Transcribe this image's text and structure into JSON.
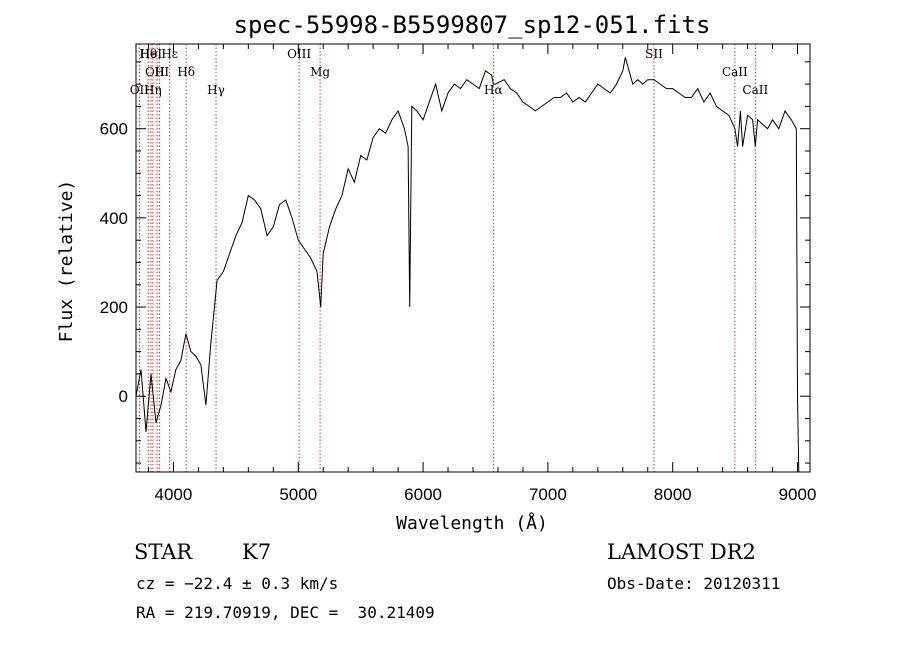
{
  "chart_data": {
    "type": "line",
    "title": "spec-55998-B5599807_sp12-051.fits",
    "xlabel": "Wavelength (Å)",
    "ylabel": "Flux (relative)",
    "xlim": [
      3700,
      9100
    ],
    "ylim": [
      -170,
      790
    ],
    "x_ticks": [
      4000,
      5000,
      6000,
      7000,
      8000,
      9000
    ],
    "y_ticks": [
      0,
      200,
      400,
      600
    ],
    "grid": false,
    "line_color": "#000000",
    "marker_color": "#cc3333",
    "series": [
      {
        "x": [
          3700,
          3740,
          3780,
          3820,
          3860,
          3900,
          3940,
          3980,
          4020,
          4060,
          4100,
          4140,
          4180,
          4220,
          4260,
          4300,
          4350,
          4400,
          4450,
          4500,
          4550,
          4600,
          4650,
          4700,
          4750,
          4800,
          4850,
          4900,
          4950,
          5000,
          5050,
          5100,
          5150,
          5180,
          5200,
          5250,
          5300,
          5350,
          5400,
          5450,
          5500,
          5550,
          5600,
          5650,
          5700,
          5750,
          5800,
          5850,
          5880,
          5893,
          5910,
          5950,
          6000,
          6050,
          6100,
          6150,
          6200,
          6250,
          6300,
          6350,
          6400,
          6450,
          6500,
          6550,
          6563,
          6580,
          6650,
          6700,
          6750,
          6800,
          6850,
          6900,
          6950,
          7000,
          7050,
          7100,
          7150,
          7200,
          7250,
          7300,
          7350,
          7400,
          7450,
          7500,
          7550,
          7600,
          7620,
          7640,
          7680,
          7720,
          7760,
          7800,
          7850,
          7900,
          7950,
          8000,
          8050,
          8100,
          8150,
          8200,
          8250,
          8300,
          8350,
          8400,
          8450,
          8498,
          8520,
          8542,
          8560,
          8600,
          8640,
          8662,
          8680,
          8720,
          8760,
          8800,
          8850,
          8900,
          8950,
          8990,
          9000,
          9010
        ],
        "values": [
          0,
          60,
          -80,
          50,
          -60,
          -20,
          40,
          10,
          60,
          80,
          140,
          100,
          90,
          70,
          -20,
          120,
          260,
          280,
          320,
          360,
          390,
          450,
          440,
          420,
          360,
          380,
          430,
          440,
          400,
          350,
          330,
          310,
          280,
          200,
          320,
          380,
          420,
          450,
          510,
          480,
          540,
          530,
          580,
          600,
          590,
          620,
          640,
          600,
          560,
          200,
          650,
          640,
          620,
          660,
          700,
          640,
          680,
          700,
          690,
          710,
          700,
          690,
          730,
          720,
          700,
          700,
          710,
          690,
          680,
          660,
          650,
          640,
          650,
          660,
          670,
          670,
          680,
          660,
          670,
          660,
          680,
          700,
          690,
          680,
          700,
          730,
          760,
          740,
          700,
          710,
          700,
          710,
          710,
          700,
          690,
          690,
          680,
          670,
          670,
          690,
          660,
          680,
          650,
          640,
          630,
          600,
          560,
          640,
          560,
          630,
          620,
          560,
          620,
          610,
          600,
          620,
          600,
          640,
          620,
          600,
          0,
          -170
        ]
      }
    ],
    "lines": [
      {
        "label": "Hθ",
        "x": 3798
      },
      {
        "label": "H",
        "x": 3889
      },
      {
        "label": "OII",
        "x": 3727
      },
      {
        "label": "HeI",
        "x": 3820
      },
      {
        "label": "OIII",
        "x": 3869
      },
      {
        "label": "Hη",
        "x": 3835
      },
      {
        "label": "Hε",
        "x": 3970
      },
      {
        "label": "Hδ",
        "x": 4102
      },
      {
        "label": "Hγ",
        "x": 4341
      },
      {
        "label": "OIII",
        "x": 5007
      },
      {
        "label": "Mg",
        "x": 5175
      },
      {
        "label": "Hα",
        "x": 6563
      },
      {
        "label": "SII",
        "x": 7850
      },
      {
        "label": "CaII",
        "x": 8498
      },
      {
        "label": "CaII",
        "x": 8662
      }
    ]
  },
  "info": {
    "object_class": "STAR",
    "subclass": "K7",
    "survey": "LAMOST DR2",
    "cz": "cz = −22.4 ± 0.3 km/s",
    "obs_date": "Obs-Date: 20120311",
    "coords": "RA = 219.70919, DEC =  30.21409"
  }
}
